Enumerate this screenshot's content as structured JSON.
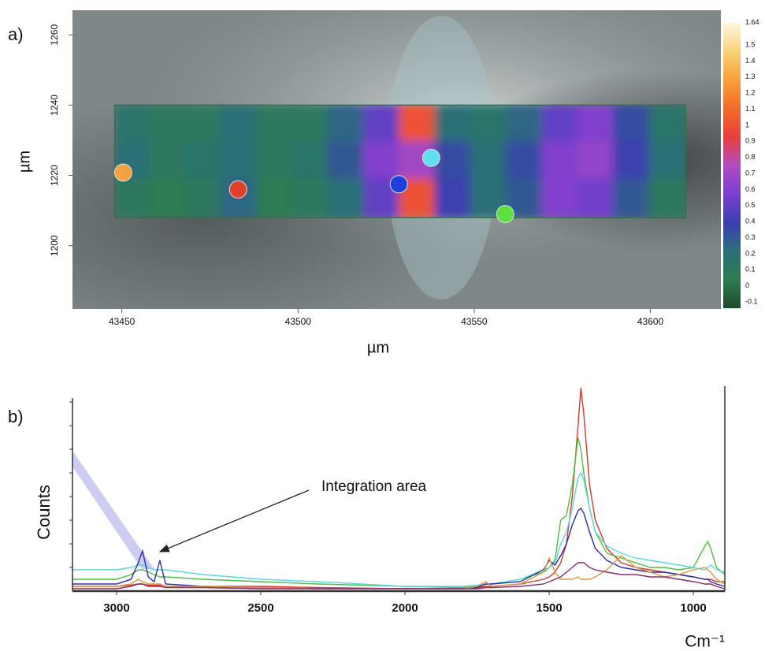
{
  "chart_data": [
    {
      "type": "heatmap",
      "panel": "a)",
      "xlabel": "µm",
      "ylabel": "µm",
      "xlim": [
        43436,
        43620
      ],
      "ylim": [
        1182,
        1267
      ],
      "xticks": [
        43450,
        43500,
        43550,
        43600
      ],
      "yticks": [
        1200,
        1220,
        1240,
        1260
      ],
      "map_xlim": [
        43448,
        43610
      ],
      "map_ylim": [
        1208,
        1240
      ],
      "z": [
        [
          0.15,
          0.1,
          0.1,
          0.2,
          0.1,
          0.1,
          0.25,
          0.5,
          1.0,
          0.2,
          0.15,
          0.25,
          0.5,
          0.6,
          0.35,
          0.15
        ],
        [
          0.2,
          0.1,
          0.15,
          0.2,
          0.1,
          0.15,
          0.3,
          0.6,
          0.7,
          0.35,
          0.2,
          0.35,
          0.6,
          0.65,
          0.4,
          0.2
        ],
        [
          0.1,
          0.05,
          0.1,
          0.25,
          0.05,
          0.1,
          0.2,
          0.5,
          1.0,
          0.4,
          0.2,
          0.3,
          0.6,
          0.55,
          0.3,
          0.1
        ]
      ],
      "zlim": [
        -0.14,
        1.64
      ],
      "colorscale": [
        "#1f4a2e",
        "#2e7d4f",
        "#2a6f7a",
        "#3a3fb0",
        "#7a3fd0",
        "#b04cc0",
        "#e8403a",
        "#f36b2a",
        "#f7a23a",
        "#fbd27a",
        "#fff8e0"
      ],
      "colorbar_ticks": [
        -0.1,
        0,
        0.1,
        0.2,
        0.3,
        0.4,
        0.5,
        0.6,
        0.7,
        0.8,
        0.9,
        1,
        1.1,
        1.2,
        1.3,
        1.4,
        1.5,
        1.64
      ],
      "points": {
        "x": [
          43450.4,
          43483,
          43528.6,
          43537.8,
          43558.8
        ],
        "y": [
          1220.8,
          1216,
          1217.5,
          1225,
          1209
        ],
        "colors": [
          "#f5a340",
          "#e0402a",
          "#1e3fe0",
          "#5ee0f0",
          "#5ee040"
        ]
      }
    },
    {
      "type": "line",
      "panel": "b)",
      "ylabel": "Counts",
      "xlabel": "Cm⁻¹",
      "annotation": "Integration area",
      "xlim": [
        3153,
        891
      ],
      "ylim": [
        0,
        8.67
      ],
      "xticks": [
        3000,
        2500,
        2000,
        1500,
        1000
      ],
      "yticks": [
        1,
        2,
        3,
        4,
        5,
        6,
        7,
        8
      ],
      "x": [
        3153,
        3000,
        2950,
        2925,
        2910,
        2890,
        2870,
        2850,
        2830,
        2700,
        2500,
        2300,
        2000,
        1800,
        1750,
        1720,
        1700,
        1600,
        1520,
        1500,
        1480,
        1460,
        1440,
        1420,
        1400,
        1390,
        1380,
        1360,
        1340,
        1300,
        1250,
        1200,
        1150,
        1100,
        1050,
        1000,
        960,
        950,
        940,
        920,
        891
      ],
      "series": [
        {
          "color": "#d63a2a",
          "values": [
            0.2,
            0.2,
            0.25,
            0.3,
            0.3,
            0.25,
            0.25,
            0.25,
            0.2,
            0.2,
            0.2,
            0.15,
            0.1,
            0.1,
            0.15,
            0.2,
            0.2,
            0.3,
            0.5,
            0.6,
            0.8,
            1.2,
            2,
            4,
            7,
            8.6,
            7.5,
            4.5,
            3,
            1.8,
            1.2,
            1,
            0.9,
            0.8,
            0.7,
            0.6,
            0.5,
            0.5,
            0.5,
            0.4,
            0.4
          ]
        },
        {
          "color": "#4cc040",
          "values": [
            0.5,
            0.5,
            0.7,
            0.9,
            0.9,
            0.8,
            0.7,
            0.6,
            0.6,
            0.5,
            0.4,
            0.3,
            0.2,
            0.15,
            0.2,
            0.3,
            0.3,
            0.5,
            0.8,
            1,
            1.3,
            3,
            3.2,
            4.5,
            6.5,
            6,
            5,
            3.5,
            2.5,
            1.6,
            1.4,
            1.2,
            1,
            1,
            0.9,
            1,
            1.9,
            2.1,
            1.8,
            1,
            0.7
          ]
        },
        {
          "color": "#5ad8e0",
          "values": [
            0.9,
            0.9,
            1,
            1.1,
            1.1,
            1,
            0.9,
            0.9,
            0.9,
            0.7,
            0.5,
            0.4,
            0.2,
            0.2,
            0.25,
            0.3,
            0.3,
            0.5,
            0.9,
            1,
            1.2,
            2,
            2.5,
            3.5,
            4.8,
            5,
            4.7,
            3.5,
            2.5,
            1.9,
            1.6,
            1.4,
            1.3,
            1.2,
            1.1,
            1,
            0.9,
            1,
            1.1,
            0.9,
            0.8
          ]
        },
        {
          "color": "#2a2ab0",
          "values": [
            0.3,
            0.3,
            0.5,
            1.2,
            1.7,
            0.6,
            0.4,
            1.3,
            0.3,
            0.2,
            0.15,
            0.1,
            0.1,
            0.1,
            0.15,
            0.3,
            0.3,
            0.4,
            0.9,
            1.3,
            1.1,
            1.5,
            2,
            2.8,
            3.4,
            3.5,
            3.3,
            2.5,
            1.8,
            1.3,
            1,
            0.9,
            0.8,
            0.8,
            0.7,
            0.6,
            0.5,
            0.5,
            0.4,
            0.3,
            0.2
          ]
        },
        {
          "color": "#d89a40",
          "values": [
            0.2,
            0.2,
            0.3,
            0.5,
            0.4,
            0.3,
            0.3,
            0.3,
            0.2,
            0.2,
            0.15,
            0.1,
            0.1,
            0.1,
            0.2,
            0.4,
            0.2,
            0.3,
            0.8,
            1.4,
            0.8,
            0.5,
            0.5,
            0.5,
            0.6,
            0.5,
            0.5,
            0.5,
            0.6,
            0.9,
            1.5,
            1,
            0.8,
            0.6,
            0.7,
            0.9,
            1,
            0.9,
            0.8,
            0.5,
            0.3
          ]
        },
        {
          "color": "#8a2a70",
          "values": [
            0.1,
            0.1,
            0.2,
            0.3,
            0.3,
            0.2,
            0.2,
            0.2,
            0.15,
            0.15,
            0.1,
            0.1,
            0.1,
            0.1,
            0.1,
            0.15,
            0.15,
            0.2,
            0.3,
            0.4,
            0.5,
            0.6,
            0.8,
            1,
            1.2,
            1.2,
            1.2,
            1,
            0.9,
            0.8,
            0.7,
            0.7,
            0.6,
            0.6,
            0.5,
            0.4,
            0.3,
            0.3,
            0.3,
            0.2,
            0.1
          ]
        }
      ]
    }
  ]
}
